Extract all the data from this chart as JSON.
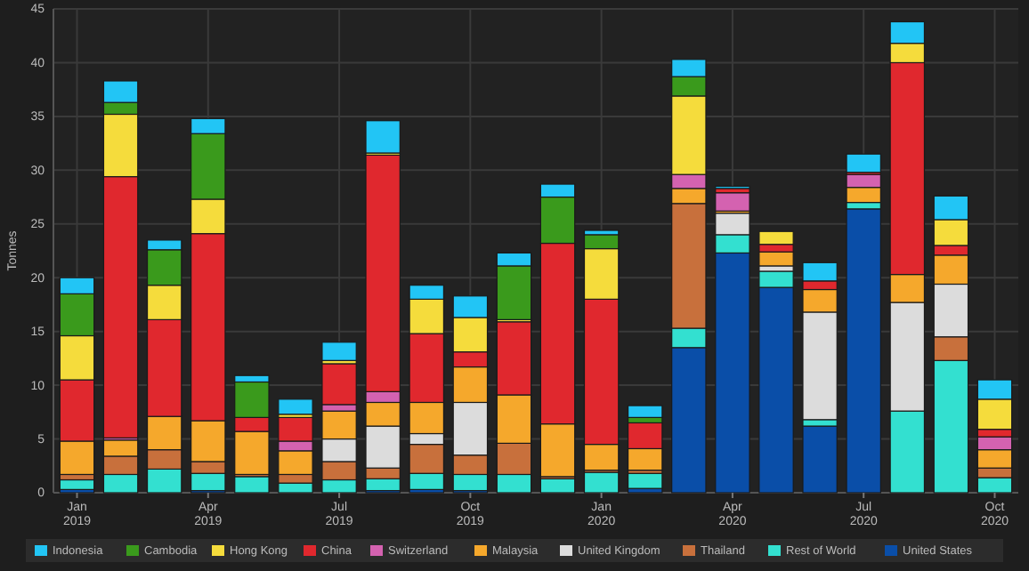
{
  "chart_data": {
    "type": "bar",
    "stacked": true,
    "ylabel": "Tonnes",
    "ylim": [
      0,
      45
    ],
    "yticks": [
      0,
      5,
      10,
      15,
      20,
      25,
      30,
      35,
      40,
      45
    ],
    "grid": true,
    "legend": "bottom",
    "categories": [
      "Jan 2019",
      null,
      null,
      "Apr 2019",
      null,
      null,
      "Jul 2019",
      null,
      null,
      "Oct 2019",
      null,
      null,
      "Jan 2020",
      null,
      null,
      "Apr 2020",
      null,
      null,
      "Jul 2020",
      null,
      null,
      "Oct 2020"
    ],
    "series": [
      {
        "name": "United States",
        "color": "#0a4ea8",
        "values": [
          0.3,
          0,
          0,
          0.2,
          0,
          0,
          0,
          0.2,
          0.3,
          0.2,
          0,
          0,
          0,
          0.4,
          13.5,
          22.3,
          19.1,
          6.2,
          26.4,
          0,
          0,
          0
        ]
      },
      {
        "name": "Rest of World",
        "color": "#33e0d0",
        "values": [
          0.9,
          1.7,
          2.2,
          1.6,
          1.5,
          0.9,
          1.2,
          1.1,
          1.5,
          1.5,
          1.7,
          1.3,
          1.9,
          1.4,
          1.8,
          1.7,
          1.5,
          0.6,
          0.6,
          7.6,
          12.3,
          1.4
        ]
      },
      {
        "name": "Thailand",
        "color": "#c8703c",
        "values": [
          0.5,
          1.7,
          1.8,
          1.1,
          0.2,
          0.8,
          1.7,
          1.0,
          2.7,
          1.8,
          2.9,
          0.2,
          0.2,
          0.3,
          11.6,
          0,
          0,
          0,
          0,
          0,
          2.2,
          0.9
        ]
      },
      {
        "name": "United Kingdom",
        "color": "#dcdcdc",
        "values": [
          0,
          0,
          0,
          0,
          0,
          0,
          2.1,
          3.9,
          1.0,
          4.9,
          0,
          0,
          0,
          0,
          0,
          2.0,
          0.5,
          10.0,
          0,
          10.1,
          4.9,
          0
        ]
      },
      {
        "name": "Malaysia",
        "color": "#f5a82c",
        "values": [
          3.1,
          1.5,
          3.1,
          3.8,
          4.0,
          2.2,
          2.6,
          2.2,
          2.9,
          3.3,
          4.5,
          4.9,
          2.4,
          2.0,
          1.4,
          0.2,
          1.3,
          2.1,
          1.4,
          2.6,
          2.7,
          1.7
        ]
      },
      {
        "name": "Switzerland",
        "color": "#d462b0",
        "values": [
          0,
          0.2,
          0,
          0,
          0,
          0.9,
          0.6,
          1.0,
          0,
          0,
          0,
          0,
          0,
          0,
          1.3,
          1.7,
          0,
          0,
          1.2,
          0,
          0,
          1.2
        ]
      },
      {
        "name": "China",
        "color": "#e0282e",
        "values": [
          5.7,
          24.3,
          9.0,
          17.4,
          1.3,
          2.2,
          3.8,
          22.0,
          6.4,
          1.4,
          6.8,
          16.8,
          13.5,
          2.4,
          0,
          0.4,
          0.7,
          0.8,
          0.2,
          19.7,
          0.9,
          0.7
        ]
      },
      {
        "name": "Hong Kong",
        "color": "#f5dc3c",
        "values": [
          4.1,
          5.8,
          3.2,
          3.2,
          0,
          0.3,
          0.3,
          0.2,
          3.2,
          3.2,
          0.2,
          0,
          4.7,
          0,
          7.3,
          0,
          1.2,
          0,
          0,
          1.8,
          2.4,
          2.8
        ]
      },
      {
        "name": "Cambodia",
        "color": "#3a9a1c",
        "values": [
          3.9,
          1.1,
          3.3,
          6.1,
          3.3,
          0,
          0,
          0,
          0,
          0,
          5.0,
          4.3,
          1.3,
          0.5,
          1.8,
          0,
          0,
          0,
          0,
          0,
          0,
          0
        ]
      },
      {
        "name": "Indonesia",
        "color": "#22c5f5",
        "values": [
          1.5,
          2.0,
          0.9,
          1.4,
          0.6,
          1.4,
          1.7,
          3.0,
          1.3,
          2.0,
          1.2,
          1.2,
          0.4,
          1.1,
          1.6,
          0.2,
          0,
          1.7,
          1.7,
          2.0,
          2.2,
          1.8
        ]
      }
    ]
  }
}
